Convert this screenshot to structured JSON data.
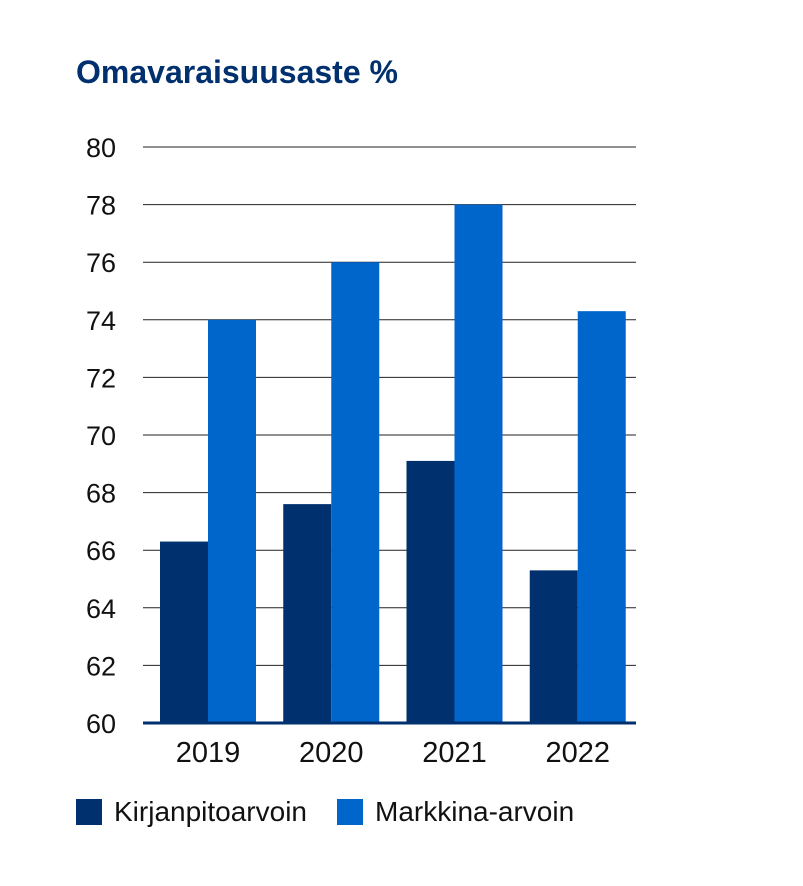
{
  "chart_data": {
    "type": "bar",
    "title": "Omavaraisuusaste %",
    "categories": [
      "2019",
      "2020",
      "2021",
      "2022"
    ],
    "series": [
      {
        "name": "Kirjanpitoarvoin",
        "color": "#00306e",
        "values": [
          66.3,
          67.6,
          69.1,
          65.3
        ]
      },
      {
        "name": "Markkina-arvoin",
        "color": "#0066cc",
        "values": [
          74.0,
          76.0,
          78.0,
          74.3
        ]
      }
    ],
    "ylim": [
      60,
      80
    ],
    "yticks": [
      "60",
      "62",
      "64",
      "66",
      "68",
      "70",
      "72",
      "74",
      "76",
      "78",
      "80"
    ],
    "grid": true,
    "legend_position": "bottom"
  }
}
